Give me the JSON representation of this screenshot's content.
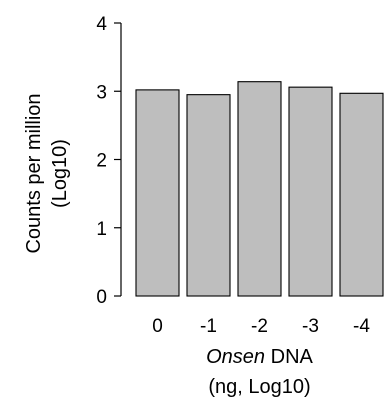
{
  "chart_data": {
    "type": "bar",
    "categories": [
      "0",
      "-1",
      "-2",
      "-3",
      "-4"
    ],
    "values": [
      3.02,
      2.95,
      3.14,
      3.06,
      2.97
    ],
    "title": "",
    "ylabel_lines": [
      "Counts per million",
      "(Log10)"
    ],
    "xlabel_lines": [
      [
        {
          "text": "Onsen",
          "italic": true
        },
        {
          "text": " DNA",
          "italic": false
        }
      ],
      [
        {
          "text": "(ng, Log10)",
          "italic": false
        }
      ]
    ],
    "ylim": [
      0,
      4
    ],
    "yticks": [
      "0",
      "1",
      "2",
      "3",
      "4"
    ],
    "grid": false,
    "legend": "none",
    "bar_color": "#bebebe",
    "edge_color": "#000000"
  }
}
